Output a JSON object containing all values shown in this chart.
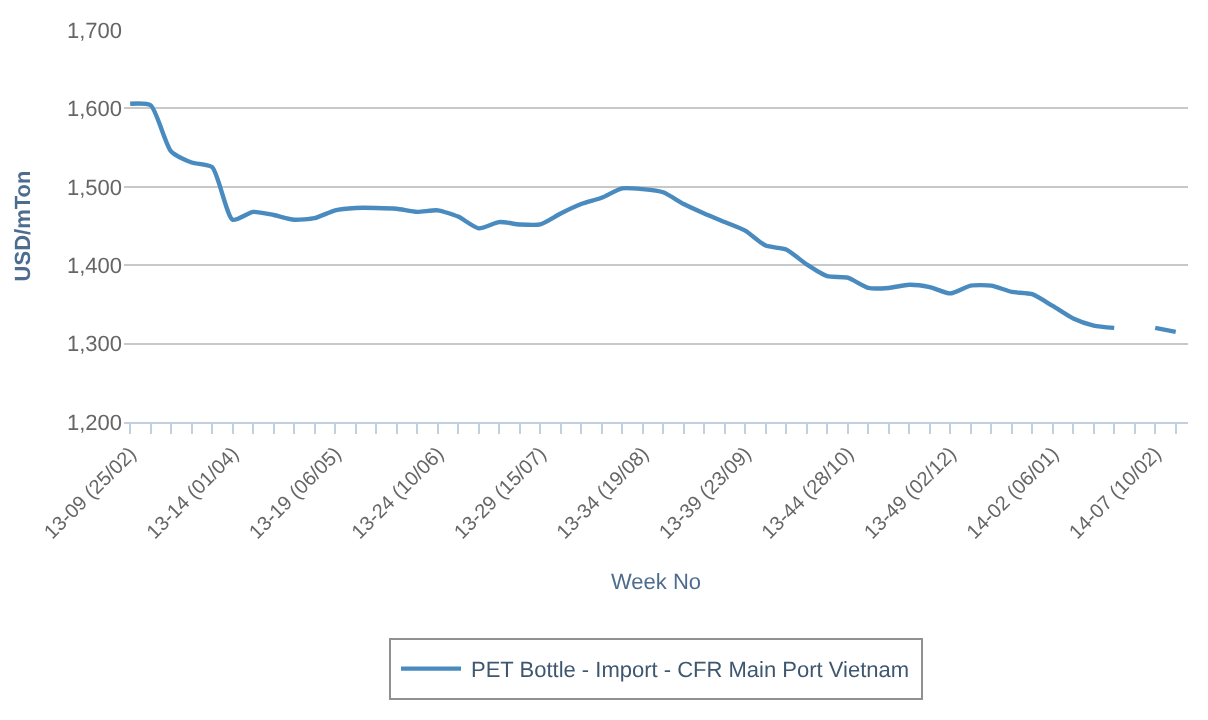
{
  "chart_data": {
    "type": "line",
    "xlabel": "Week No",
    "ylabel": "USD/mTon",
    "categories": [
      "13-09 (25/02)",
      null,
      null,
      null,
      null,
      "13-14 (01/04)",
      null,
      null,
      null,
      null,
      "13-19 (06/05)",
      null,
      null,
      null,
      null,
      "13-24 (10/06)",
      null,
      null,
      null,
      null,
      "13-29 (15/07)",
      null,
      null,
      null,
      null,
      "13-34 (19/08)",
      null,
      null,
      null,
      null,
      "13-39 (23/09)",
      null,
      null,
      null,
      null,
      "13-44 (28/10)",
      null,
      null,
      null,
      null,
      "13-49 (02/12)",
      null,
      null,
      null,
      null,
      "14-02 (06/01)",
      null,
      null,
      null,
      null,
      "14-07 (10/02)",
      null
    ],
    "series": [
      {
        "name": "PET Bottle - Import - CFR Main Port Vietnam",
        "color": "#4a8bbf",
        "values": [
          1606,
          1604,
          1545,
          1531,
          1525,
          1458,
          1468,
          1464,
          1458,
          1460,
          1470,
          1473,
          1473,
          1472,
          1468,
          1470,
          1462,
          1447,
          1455,
          1452,
          1452,
          1466,
          1478,
          1486,
          1498,
          1497,
          1493,
          1478,
          1466,
          1455,
          1444,
          1425,
          1420,
          1401,
          1386,
          1384,
          1371,
          1371,
          1375,
          1372,
          1364,
          1374,
          1374,
          1366,
          1363,
          1348,
          1332,
          1323,
          1320,
          null,
          1320,
          1315
        ]
      }
    ],
    "ylim": [
      1200,
      1700
    ],
    "yticks": [
      {
        "value": 1200,
        "label": "1,200"
      },
      {
        "value": 1300,
        "label": "1,300"
      },
      {
        "value": 1400,
        "label": "1,400"
      },
      {
        "value": 1500,
        "label": "1,500"
      },
      {
        "value": 1600,
        "label": "1,600"
      },
      {
        "value": 1700,
        "label": "1,700"
      }
    ],
    "grid": "y",
    "legend": "bottom",
    "marker": "none",
    "line_style": "solid"
  }
}
